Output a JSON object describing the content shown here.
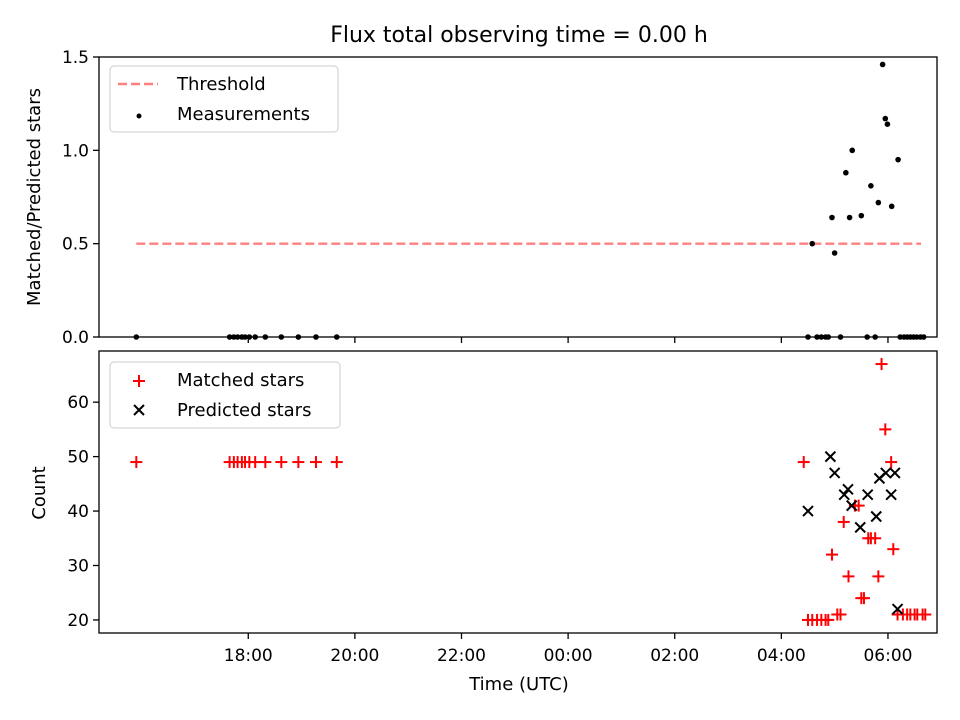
{
  "figure_title": "Flux total observing time = 0.00 h",
  "colors": {
    "threshold": "#ff8080",
    "measurement": "#000000",
    "matched": "#ff0000",
    "predicted": "#000000",
    "axis": "#000000"
  },
  "chart_data": [
    {
      "type": "scatter",
      "title": "Flux total observing time = 0.00 h",
      "xlabel": "",
      "ylabel": "Matched/Predicted stars",
      "x_unit": "hours since 00:00 UTC",
      "xlim": [
        -8.8,
        6.92
      ],
      "ylim": [
        0.0,
        1.5
      ],
      "yticks": [
        "0.0",
        "0.5",
        "1.0",
        "1.5"
      ],
      "yticks_values": [
        0.0,
        0.5,
        1.0,
        1.5
      ],
      "xticks_values": [
        -6,
        -4,
        -2,
        0,
        2,
        4,
        6
      ],
      "legend_position": "upper-left",
      "series": [
        {
          "name": "Threshold",
          "kind": "line",
          "x": [
            -8.1,
            6.62
          ],
          "y": [
            0.5,
            0.5
          ]
        },
        {
          "name": "Measurements",
          "kind": "scatter",
          "x": [
            -8.1,
            -6.35,
            -6.27,
            -6.2,
            -6.12,
            -6.06,
            -5.98,
            -5.87,
            -5.68,
            -5.38,
            -5.06,
            -4.73,
            -4.34,
            4.5,
            4.58,
            4.67,
            4.75,
            4.83,
            4.88,
            4.95,
            5.0,
            5.11,
            5.21,
            5.28,
            5.33,
            5.5,
            5.61,
            5.68,
            5.76,
            5.82,
            5.9,
            5.95,
            5.99,
            6.07,
            6.19,
            6.23,
            6.3,
            6.36,
            6.42,
            6.48,
            6.54,
            6.61,
            6.67
          ],
          "y": [
            0.0,
            0.0,
            0.0,
            0.0,
            0.0,
            0.0,
            0.0,
            0.0,
            0.0,
            0.0,
            0.0,
            0.0,
            0.0,
            0.0,
            0.5,
            0.0,
            0.0,
            0.0,
            0.0,
            0.64,
            0.45,
            0.0,
            0.88,
            0.64,
            1.0,
            0.65,
            0.0,
            0.81,
            0.0,
            0.72,
            1.46,
            1.17,
            1.14,
            0.7,
            0.95,
            0.0,
            0.0,
            0.0,
            0.0,
            0.0,
            0.0,
            0.0,
            0.0
          ]
        }
      ]
    },
    {
      "type": "scatter",
      "title": "",
      "xlabel": "Time (UTC)",
      "ylabel": "Count",
      "x_unit": "hours since 00:00 UTC",
      "xlim": [
        -8.8,
        6.92
      ],
      "ylim": [
        17.6,
        69.4
      ],
      "yticks": [
        "20",
        "30",
        "40",
        "50",
        "60"
      ],
      "yticks_values": [
        20,
        30,
        40,
        50,
        60
      ],
      "xticks": [
        "18:00",
        "20:00",
        "22:00",
        "00:00",
        "02:00",
        "04:00",
        "06:00"
      ],
      "xticks_values": [
        -6,
        -4,
        -2,
        0,
        2,
        4,
        6
      ],
      "legend_position": "upper-left",
      "series": [
        {
          "name": "Matched stars",
          "marker": "+",
          "x": [
            -8.1,
            -6.35,
            -6.27,
            -6.2,
            -6.12,
            -6.06,
            -5.98,
            -5.87,
            -5.68,
            -5.38,
            -5.06,
            -4.73,
            -4.34,
            4.42,
            4.5,
            4.58,
            4.67,
            4.75,
            4.83,
            4.88,
            4.95,
            5.05,
            5.11,
            5.17,
            5.26,
            5.38,
            5.45,
            5.5,
            5.55,
            5.63,
            5.68,
            5.76,
            5.82,
            5.88,
            5.95,
            6.06,
            6.1,
            6.18,
            6.28,
            6.36,
            6.42,
            6.5,
            6.55,
            6.65,
            6.7
          ],
          "y": [
            49,
            49,
            49,
            49,
            49,
            49,
            49,
            49,
            49,
            49,
            49,
            49,
            49,
            49,
            20,
            20,
            20,
            20,
            20,
            20,
            32,
            21,
            21,
            38,
            28,
            41,
            41,
            24,
            24,
            35,
            35,
            35,
            28,
            67,
            55,
            49,
            33,
            21,
            21,
            21,
            21,
            21,
            21,
            21,
            21
          ]
        },
        {
          "name": "Predicted stars",
          "marker": "x",
          "x": [
            4.5,
            4.92,
            5.0,
            5.18,
            5.25,
            5.32,
            5.48,
            5.62,
            5.78,
            5.84,
            5.96,
            6.06,
            6.13,
            6.18
          ],
          "y": [
            40,
            50,
            47,
            43,
            44,
            41,
            37,
            43,
            39,
            46,
            47,
            43,
            47,
            22
          ]
        }
      ]
    }
  ]
}
